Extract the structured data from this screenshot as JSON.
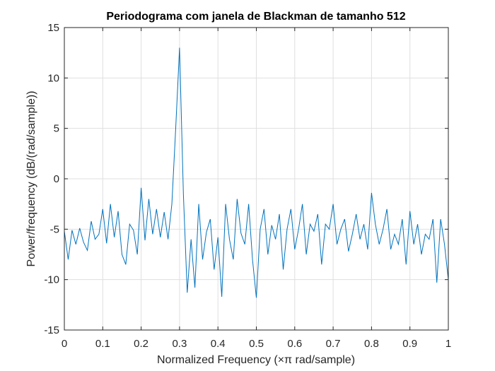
{
  "chart_data": {
    "type": "line",
    "title": "Periodograma com janela de Blackman de tamanho 512",
    "xlabel": "Normalized Frequency  (×π rad/sample)",
    "ylabel": "Power/frequency (dB/(rad/sample))",
    "xlim": [
      0,
      1
    ],
    "ylim": [
      -15,
      15
    ],
    "xticks": [
      0,
      0.1,
      0.2,
      0.3,
      0.4,
      0.5,
      0.6,
      0.7,
      0.8,
      0.9,
      1
    ],
    "xtick_labels": [
      "0",
      "0.1",
      "0.2",
      "0.3",
      "0.4",
      "0.5",
      "0.6",
      "0.7",
      "0.8",
      "0.9",
      "1"
    ],
    "yticks": [
      -15,
      -10,
      -5,
      0,
      5,
      10,
      15
    ],
    "ytick_labels": [
      "-15",
      "-10",
      "-5",
      "0",
      "5",
      "10",
      "15"
    ],
    "grid": true,
    "line_color": "#0072bd",
    "series": [
      {
        "x": [
          0,
          0.01,
          0.02,
          0.03,
          0.04,
          0.05,
          0.06,
          0.07,
          0.08,
          0.09,
          0.1,
          0.11,
          0.12,
          0.13,
          0.14,
          0.15,
          0.16,
          0.17,
          0.18,
          0.19,
          0.2,
          0.21,
          0.22,
          0.23,
          0.24,
          0.25,
          0.26,
          0.27,
          0.28,
          0.29,
          0.3,
          0.31,
          0.32,
          0.33,
          0.34,
          0.35,
          0.36,
          0.37,
          0.38,
          0.39,
          0.4,
          0.41,
          0.42,
          0.43,
          0.44,
          0.45,
          0.46,
          0.47,
          0.48,
          0.49,
          0.5,
          0.51,
          0.52,
          0.53,
          0.54,
          0.55,
          0.56,
          0.57,
          0.58,
          0.59,
          0.6,
          0.61,
          0.62,
          0.63,
          0.64,
          0.65,
          0.66,
          0.67,
          0.68,
          0.69,
          0.7,
          0.71,
          0.72,
          0.73,
          0.74,
          0.75,
          0.76,
          0.77,
          0.78,
          0.79,
          0.8,
          0.81,
          0.82,
          0.83,
          0.84,
          0.85,
          0.86,
          0.87,
          0.88,
          0.89,
          0.9,
          0.91,
          0.92,
          0.93,
          0.94,
          0.95,
          0.96,
          0.97,
          0.98,
          0.99,
          1
        ],
        "y": [
          -5.2,
          -8.0,
          -5.1,
          -6.5,
          -4.9,
          -6.3,
          -7.1,
          -4.2,
          -6.0,
          -5.5,
          -3.0,
          -6.4,
          -2.5,
          -5.8,
          -3.2,
          -7.5,
          -8.5,
          -4.5,
          -5.1,
          -7.5,
          -0.9,
          -6.1,
          -2.0,
          -5.5,
          -3.0,
          -5.8,
          -3.3,
          -6.0,
          -2.5,
          5.0,
          13.0,
          -1.5,
          -11.3,
          -6.0,
          -10.8,
          -2.5,
          -8.0,
          -5.3,
          -4.0,
          -9.0,
          -5.8,
          -11.7,
          -2.5,
          -6.0,
          -8.0,
          -2.0,
          -5.4,
          -6.5,
          -2.5,
          -8.0,
          -11.8,
          -5.0,
          -3.0,
          -7.5,
          -4.6,
          -6.0,
          -3.5,
          -9.0,
          -5.0,
          -3.0,
          -7.0,
          -5.0,
          -2.5,
          -7.5,
          -4.5,
          -5.2,
          -3.5,
          -8.5,
          -4.5,
          -5.0,
          -2.5,
          -6.5,
          -5.0,
          -4.0,
          -7.2,
          -5.5,
          -3.5,
          -6.0,
          -4.5,
          -7.0,
          -1.4,
          -4.5,
          -6.5,
          -5.0,
          -3.0,
          -7.0,
          -5.5,
          -6.5,
          -4.0,
          -8.5,
          -3.2,
          -6.5,
          -4.5,
          -7.5,
          -5.5,
          -6.0,
          -4.0,
          -10.3,
          -4.0,
          -6.5,
          -10.0
        ]
      }
    ]
  }
}
